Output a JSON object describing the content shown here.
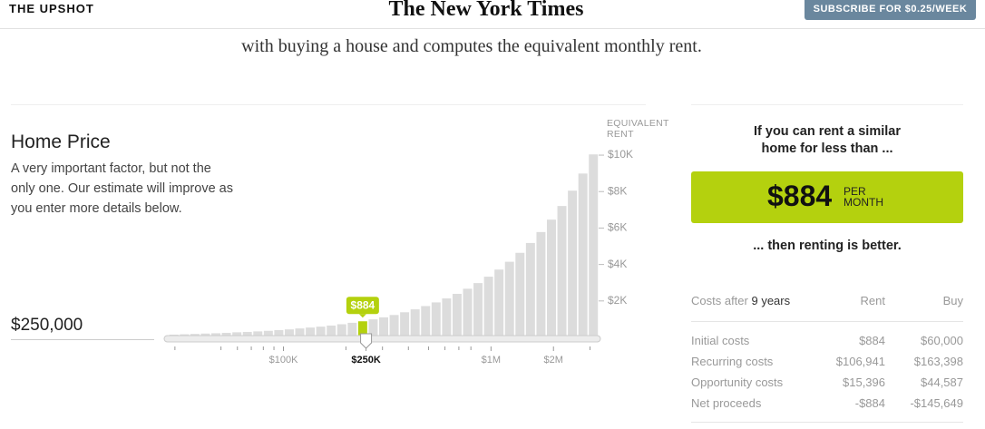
{
  "header": {
    "section": "THE UPSHOT",
    "logo": "The New York Times",
    "subscribe": "SUBSCRIBE FOR $0.25/WEEK"
  },
  "intro": "with buying a house and computes the equivalent monthly rent.",
  "home_price": {
    "title": "Home Price",
    "description": "A very important factor, but not the only one. Our estimate will improve as you enter more details below.",
    "input": "$250,000"
  },
  "chart_data": {
    "type": "bar",
    "y_label": "EQUIVALENT RENT",
    "values": [
      150,
      170,
      190,
      210,
      230,
      250,
      280,
      300,
      330,
      360,
      400,
      440,
      490,
      540,
      590,
      650,
      720,
      800,
      884,
      990,
      1100,
      1230,
      1380,
      1540,
      1720,
      1920,
      2140,
      2390,
      2670,
      2980,
      3330,
      3720,
      4150,
      4640,
      5180,
      5780,
      6460,
      7210,
      8050,
      8990,
      10040
    ],
    "color": "#dcdcdc",
    "highlight": {
      "index": 18,
      "color": "#b4d10e",
      "label": "$884"
    },
    "ylim": [
      0,
      10500
    ],
    "yticks": [
      {
        "value": 2000,
        "label": "$2K"
      },
      {
        "value": 4000,
        "label": "$4K"
      },
      {
        "value": 6000,
        "label": "$6K"
      },
      {
        "value": 8000,
        "label": "$8K"
      },
      {
        "value": 10000,
        "label": "$10K"
      }
    ],
    "x_axis": {
      "log": true,
      "xlim": [
        28000,
        3300000
      ],
      "xticks": [
        {
          "value": 100000,
          "label": "$100K"
        },
        {
          "value": 250000,
          "label": "$250K"
        },
        {
          "value": 1000000,
          "label": "$1M"
        },
        {
          "value": 2000000,
          "label": "$2M"
        }
      ],
      "minor_xticks": [
        30000,
        50000,
        60000,
        70000,
        80000,
        90000,
        200000,
        300000,
        400000,
        500000,
        600000,
        700000,
        800000,
        3000000
      ],
      "slider_value": 250000
    }
  },
  "result": {
    "intro": "If you can rent a similar home for less than ...",
    "amount": "$884",
    "unit": "PER MONTH",
    "outro": "... then renting is better."
  },
  "costs": {
    "label": "Costs after",
    "years": "9 years",
    "columns": [
      "Rent",
      "Buy"
    ],
    "rows": [
      [
        "Initial costs",
        "$884",
        "$60,000"
      ],
      [
        "Recurring costs",
        "$106,941",
        "$163,398"
      ],
      [
        "Opportunity costs",
        "$15,396",
        "$44,587"
      ],
      [
        "Net proceeds",
        "-$884",
        "-$145,649"
      ]
    ]
  }
}
